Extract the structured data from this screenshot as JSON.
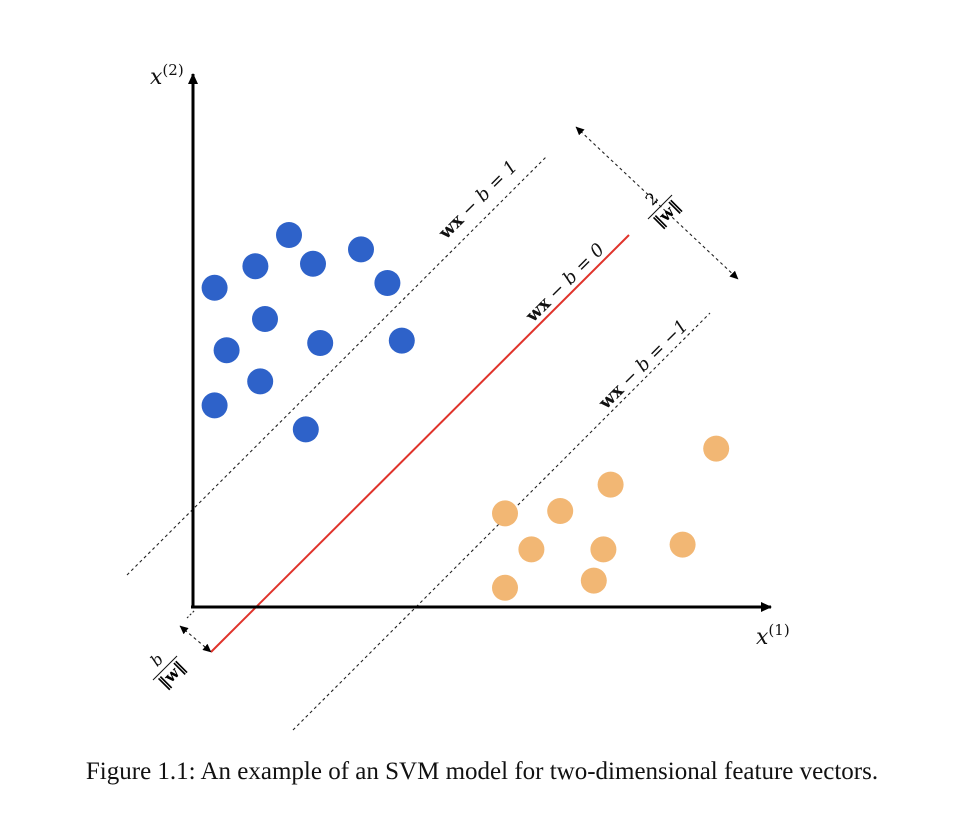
{
  "caption": "Figure 1.1: An example of an SVM model for two-dimensional feature vectors.",
  "axes": {
    "x_label": {
      "base": "x",
      "sup": "(1)"
    },
    "y_label": {
      "base": "x",
      "sup": "(2)"
    }
  },
  "lines": {
    "upper": {
      "wx": "wx",
      "rest": " − b = 1"
    },
    "middle": {
      "wx": "wx",
      "rest": " − b = 0"
    },
    "lower": {
      "wx": "wx",
      "rest": " − b = −1"
    }
  },
  "margin_label": {
    "numerator": "2",
    "denominator": "‖w‖"
  },
  "offset_label": {
    "numerator": "b",
    "denominator": "‖w‖"
  },
  "colors": {
    "class_positive": "#2e62c9",
    "class_negative": "#f2b774",
    "decision_boundary": "#e0332b",
    "margin_lines": "#222222"
  },
  "chart_data": {
    "type": "scatter",
    "series": [
      {
        "class": "positive",
        "color": "#2e62c9",
        "points": [
          [
            4.0,
            15.5
          ],
          [
            2.6,
            14.2
          ],
          [
            5.0,
            14.3
          ],
          [
            7.0,
            14.9
          ],
          [
            8.1,
            13.5
          ],
          [
            0.9,
            13.3
          ],
          [
            3.0,
            12.0
          ],
          [
            5.3,
            11.0
          ],
          [
            1.4,
            10.7
          ],
          [
            2.8,
            9.4
          ],
          [
            0.9,
            8.4
          ],
          [
            4.7,
            7.4
          ],
          [
            8.7,
            11.1
          ]
        ]
      },
      {
        "class": "negative",
        "color": "#f2b774",
        "points": [
          [
            13.0,
            3.9
          ],
          [
            15.3,
            4.0
          ],
          [
            17.4,
            5.1
          ],
          [
            21.8,
            6.6
          ],
          [
            14.1,
            2.4
          ],
          [
            17.1,
            2.4
          ],
          [
            20.4,
            2.6
          ],
          [
            13.0,
            0.8
          ],
          [
            16.7,
            1.1
          ]
        ]
      }
    ]
  }
}
